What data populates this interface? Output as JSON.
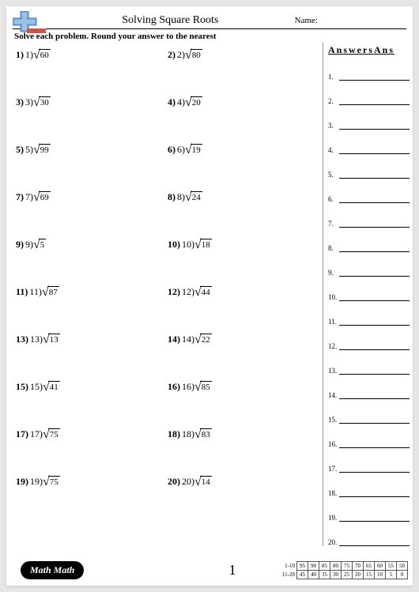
{
  "header": {
    "title": "Solving Square Roots",
    "name_label": "Name:"
  },
  "instructions": "Solve each problem. Round your answer to the nearest",
  "problems": [
    {
      "n": "1",
      "seq": "1)",
      "val": "60"
    },
    {
      "n": "2",
      "seq": "2)",
      "val": "80"
    },
    {
      "n": "3",
      "seq": "3)",
      "val": "30"
    },
    {
      "n": "4",
      "seq": "4)",
      "val": "20"
    },
    {
      "n": "5",
      "seq": "5)",
      "val": "99"
    },
    {
      "n": "6",
      "seq": "6)",
      "val": "19"
    },
    {
      "n": "7",
      "seq": "7)",
      "val": "69"
    },
    {
      "n": "8",
      "seq": "8)",
      "val": "24"
    },
    {
      "n": "9",
      "seq": "9)",
      "val": "5"
    },
    {
      "n": "10",
      "seq": "10)",
      "val": "18"
    },
    {
      "n": "11",
      "seq": "11)",
      "val": "87"
    },
    {
      "n": "12",
      "seq": "12)",
      "val": "44"
    },
    {
      "n": "13",
      "seq": "13)",
      "val": "13"
    },
    {
      "n": "14",
      "seq": "14)",
      "val": "22"
    },
    {
      "n": "15",
      "seq": "15)",
      "val": "41"
    },
    {
      "n": "16",
      "seq": "16)",
      "val": "85"
    },
    {
      "n": "17",
      "seq": "17)",
      "val": "75"
    },
    {
      "n": "18",
      "seq": "18)",
      "val": "83"
    },
    {
      "n": "19",
      "seq": "19)",
      "val": "75"
    },
    {
      "n": "20",
      "seq": "20)",
      "val": "14"
    }
  ],
  "answers_title": "AnswersAns",
  "answer_lines": [
    "1.",
    "2.",
    "3.",
    "4.",
    "5.",
    "6.",
    "7.",
    "8.",
    "9.",
    "10.",
    "11.",
    "12.",
    "13.",
    "14.",
    "15.",
    "16.",
    "17.",
    "18.",
    "19.",
    "20."
  ],
  "footer": {
    "badge": "Math Math",
    "page": "1"
  },
  "score": {
    "row1_label": "1-10",
    "row2_label": "11-20",
    "row1": [
      "95",
      "90",
      "85",
      "80",
      "75",
      "70",
      "65",
      "60",
      "55",
      "50"
    ],
    "row2": [
      "45",
      "40",
      "35",
      "30",
      "25",
      "20",
      "15",
      "10",
      "5",
      "0"
    ]
  },
  "colors": {
    "logo_blue": "#7aa8d8",
    "logo_blue_dark": "#4a7bb5",
    "logo_red": "#c05a4a",
    "page_bg": "#ffffff",
    "body_bg": "#e6e6e6"
  }
}
